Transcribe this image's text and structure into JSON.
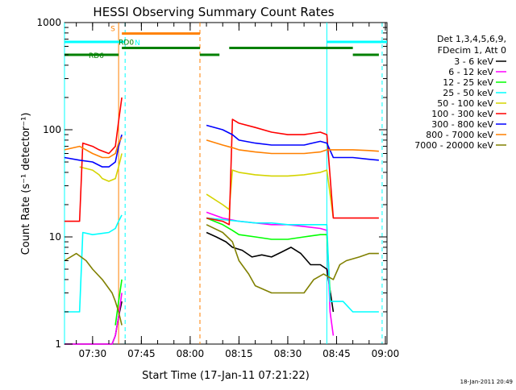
{
  "chart_data": {
    "type": "line",
    "title": "HESSI Observing Summary Count Rates",
    "xlabel": "Start Time (17-Jan-11 07:21:22)",
    "ylabel": "Count Rate (s⁻¹ detector⁻¹)",
    "y_scale": "log",
    "ylim": [
      1,
      1000
    ],
    "xlim": [
      "07:21:22",
      "09:00:30"
    ],
    "grid": false,
    "legend_placement": "right",
    "x_tick_labels": [
      "07:30",
      "07:45",
      "08:00",
      "08:15",
      "08:30",
      "08:45",
      "09:00"
    ],
    "x_ticks": [
      "07:30",
      "07:45",
      "08:00",
      "08:15",
      "08:30",
      "08:45",
      "09:00"
    ],
    "y_tick_labels": [
      "1",
      "10",
      "100",
      "1000"
    ],
    "y_ticks": [
      1,
      10,
      100,
      1000
    ],
    "legend_header": [
      "Det 1,3,4,5,6,9,",
      "FDecim 1, Att 0"
    ],
    "footer_timestamp": "18-Jan-2011 20:49",
    "series": [
      {
        "name": "3 - 6 keV",
        "color": "#000000",
        "segments": [
          {
            "x": [
              "07:21:22",
              "07:30",
              "07:36",
              "07:37",
              "07:38",
              "07:39"
            ],
            "y": [
              1,
              1,
              1,
              1.2,
              1.8,
              2.5
            ]
          },
          {
            "x": [
              "08:05",
              "08:08",
              "08:11",
              "08:13",
              "08:16",
              "08:19",
              "08:22",
              "08:25",
              "08:28",
              "08:31",
              "08:34",
              "08:37",
              "08:40",
              "08:42",
              "08:44"
            ],
            "y": [
              11,
              10,
              9,
              8,
              7.5,
              6.5,
              6.8,
              6.5,
              7.2,
              8,
              7,
              5.5,
              5.5,
              5,
              2
            ]
          }
        ]
      },
      {
        "name": "6 - 12 keV",
        "color": "#ff00ff",
        "segments": [
          {
            "x": [
              "07:21:22",
              "07:30",
              "07:36",
              "07:37",
              "07:38",
              "07:39"
            ],
            "y": [
              1,
              1,
              1,
              1.2,
              1.8,
              3
            ]
          },
          {
            "x": [
              "08:05",
              "08:10",
              "08:15",
              "08:20",
              "08:25",
              "08:30",
              "08:35",
              "08:40",
              "08:42",
              "08:43",
              "08:44"
            ],
            "y": [
              17,
              15,
              14,
              13.5,
              13,
              13,
              12.5,
              12,
              11.5,
              2,
              1.2
            ]
          }
        ]
      },
      {
        "name": "12 - 25 keV",
        "color": "#00ff00",
        "segments": [
          {
            "x": [
              "07:37",
              "07:38",
              "07:39"
            ],
            "y": [
              1.5,
              2.5,
              4
            ]
          },
          {
            "x": [
              "08:05",
              "08:10",
              "08:13",
              "08:15",
              "08:20",
              "08:25",
              "08:30",
              "08:35",
              "08:40",
              "08:42",
              "08:43"
            ],
            "y": [
              15,
              13,
              11.5,
              10.5,
              10,
              9.5,
              9.5,
              10,
              10.5,
              10.5,
              3
            ]
          }
        ]
      },
      {
        "name": "25 - 50 keV",
        "color": "#00ffff",
        "segments": [
          {
            "x": [
              "07:21:22",
              "07:26",
              "07:27",
              "07:30",
              "07:35",
              "07:37",
              "07:38",
              "07:39"
            ],
            "y": [
              2,
              2,
              11,
              10.5,
              11,
              12,
              14,
              16
            ]
          },
          {
            "x": [
              "08:05",
              "08:10",
              "08:15",
              "08:20",
              "08:25",
              "08:30",
              "08:35",
              "08:40",
              "08:42",
              "08:43",
              "08:47",
              "08:50",
              "08:55",
              "08:58"
            ],
            "y": [
              15,
              14.5,
              14,
              13.5,
              13.5,
              13,
              13,
              13,
              13,
              2.5,
              2.5,
              2,
              2,
              2
            ]
          }
        ]
      },
      {
        "name": "50 - 100 keV",
        "color": "#d4d400",
        "segments": [
          {
            "x": [
              "07:26",
              "07:30",
              "07:32",
              "07:33",
              "07:35",
              "07:37",
              "07:38",
              "07:39"
            ],
            "y": [
              45,
              42,
              38,
              35,
              33,
              35,
              45,
              60
            ]
          },
          {
            "x": [
              "08:05",
              "08:10",
              "08:12",
              "08:13",
              "08:15",
              "08:20",
              "08:25",
              "08:30",
              "08:35",
              "08:40",
              "08:42",
              "08:44"
            ],
            "y": [
              25,
              20,
              18,
              42,
              40,
              38,
              37,
              37,
              38,
              40,
              42,
              15
            ]
          }
        ]
      },
      {
        "name": "100 - 300 keV",
        "color": "#ff0000",
        "segments": [
          {
            "x": [
              "07:21:22",
              "07:26",
              "07:27",
              "07:30",
              "07:32",
              "07:35",
              "07:37",
              "07:38",
              "07:39"
            ],
            "y": [
              14,
              14,
              75,
              70,
              65,
              60,
              70,
              120,
              200
            ]
          },
          {
            "x": [
              "08:05",
              "08:10",
              "08:12",
              "08:13",
              "08:15",
              "08:20",
              "08:25",
              "08:30",
              "08:35",
              "08:40",
              "08:42",
              "08:44",
              "08:45",
              "08:50",
              "08:55",
              "08:58"
            ],
            "y": [
              15,
              14,
              13,
              125,
              115,
              105,
              95,
              90,
              90,
              95,
              90,
              15,
              15,
              15,
              15,
              15
            ]
          }
        ]
      },
      {
        "name": "300 - 800 keV",
        "color": "#0000ff",
        "segments": [
          {
            "x": [
              "07:21:22",
              "07:26",
              "07:30",
              "07:33",
              "07:35",
              "07:37",
              "07:38",
              "07:39"
            ],
            "y": [
              55,
              52,
              50,
              45,
              45,
              50,
              70,
              90
            ]
          },
          {
            "x": [
              "08:05",
              "08:10",
              "08:13",
              "08:15",
              "08:20",
              "08:25",
              "08:30",
              "08:35",
              "08:40",
              "08:42",
              "08:44",
              "08:45",
              "08:50",
              "08:55",
              "08:58"
            ],
            "y": [
              110,
              100,
              90,
              80,
              75,
              72,
              72,
              72,
              78,
              75,
              55,
              55,
              55,
              53,
              52
            ]
          }
        ]
      },
      {
        "name": "800 - 7000 keV",
        "color": "#ff8000",
        "segments": [
          {
            "x": [
              "07:21:22",
              "07:26",
              "07:30",
              "07:33",
              "07:35",
              "07:37",
              "07:38",
              "07:39"
            ],
            "y": [
              65,
              70,
              60,
              55,
              55,
              60,
              75,
              85
            ]
          },
          {
            "x": [
              "08:05",
              "08:10",
              "08:13",
              "08:15",
              "08:20",
              "08:25",
              "08:30",
              "08:35",
              "08:40",
              "08:42",
              "08:44",
              "08:45",
              "08:50",
              "08:55",
              "08:58"
            ],
            "y": [
              80,
              72,
              68,
              65,
              62,
              60,
              60,
              60,
              62,
              65,
              65,
              65,
              65,
              64,
              63
            ]
          }
        ]
      },
      {
        "name": "7000 - 20000 keV",
        "color": "#808000",
        "segments": [
          {
            "x": [
              "07:21:22",
              "07:25",
              "07:28",
              "07:30",
              "07:33",
              "07:36",
              "07:37",
              "07:38",
              "07:39"
            ],
            "y": [
              6,
              7,
              6,
              5,
              4,
              3,
              2.5,
              2,
              1.5
            ]
          },
          {
            "x": [
              "08:05",
              "08:10",
              "08:13",
              "08:15",
              "08:18",
              "08:20",
              "08:25",
              "08:30",
              "08:35",
              "08:38",
              "08:41",
              "08:44",
              "08:46",
              "08:48",
              "08:52",
              "08:55",
              "08:58"
            ],
            "y": [
              13,
              11,
              9,
              6,
              4.5,
              3.5,
              3,
              3,
              3,
              4,
              4.5,
              4,
              5.5,
              6,
              6.5,
              7,
              7
            ]
          }
        ]
      }
    ],
    "state_bars": [
      {
        "label": "S",
        "color": "#ff8000",
        "label_color": "#ff8000",
        "level": 790,
        "start": "07:39",
        "end": "08:03"
      },
      {
        "label": "N",
        "color": "#00ffff",
        "label_color": "#00ffff",
        "level": 660,
        "start": "07:21:22",
        "end": "07:40"
      },
      {
        "label": "",
        "color": "#00ffff",
        "label_color": "#00ffff",
        "level": 660,
        "start": "08:42",
        "end": "09:00:30"
      },
      {
        "label": "RD0",
        "color": "#008000",
        "label_color": "#008000",
        "level": 580,
        "start": "07:39",
        "end": "08:03"
      },
      {
        "label": "",
        "color": "#008000",
        "label_color": "#008000",
        "level": 580,
        "start": "08:12",
        "end": "08:50"
      },
      {
        "label": "RD6",
        "color": "#008000",
        "label_color": "#008000",
        "level": 500,
        "start": "07:21:22",
        "end": "07:38"
      },
      {
        "label": "",
        "color": "#008000",
        "label_color": "#008000",
        "level": 500,
        "start": "08:03",
        "end": "08:09"
      },
      {
        "label": "",
        "color": "#008000",
        "label_color": "#008000",
        "level": 500,
        "start": "08:50",
        "end": "08:58"
      }
    ],
    "vertical_markers": [
      {
        "x": "07:21:22",
        "color": "#00ffff",
        "style": "solid"
      },
      {
        "x": "07:38",
        "color": "#ff8000",
        "style": "solid"
      },
      {
        "x": "07:40",
        "color": "#00ffff",
        "style": "dashed"
      },
      {
        "x": "08:03",
        "color": "#ff8000",
        "style": "dashed"
      },
      {
        "x": "08:42",
        "color": "#00ffff",
        "style": "solid"
      },
      {
        "x": "08:59",
        "color": "#00ffff",
        "style": "dashed"
      }
    ]
  }
}
